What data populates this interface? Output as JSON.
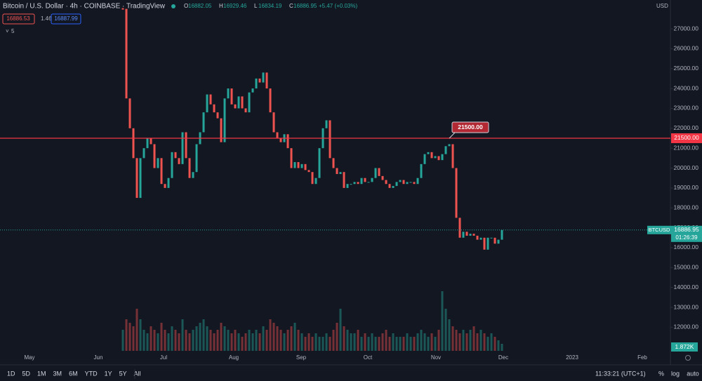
{
  "header": {
    "title": "Bitcoin / U.S. Dollar · 4h · COINBASE · TradingView",
    "ohlc": [
      {
        "label": "O",
        "value": "16882.05"
      },
      {
        "label": "H",
        "value": "16929.46"
      },
      {
        "label": "L",
        "value": "16834.19"
      },
      {
        "label": "C",
        "value": "16886.95"
      }
    ],
    "change": "+5.47 (+0.03%)",
    "bid": "16886.53",
    "spread": "1.46",
    "ask": "16887.99",
    "indicators": "5",
    "currency": "USD"
  },
  "chart_data": {
    "type": "candlestick",
    "closes": [
      28000,
      23500,
      22000,
      20500,
      18500,
      20500,
      21000,
      21500,
      21200,
      20000,
      20500,
      19200,
      19000,
      19500,
      20800,
      20500,
      20200,
      21800,
      20500,
      19500,
      19800,
      21200,
      21800,
      22800,
      23700,
      23200,
      22800,
      22500,
      21300,
      23500,
      24000,
      23200,
      23000,
      23600,
      23000,
      22800,
      23800,
      24000,
      24500,
      24300,
      24800,
      24000,
      22800,
      21800,
      21500,
      21300,
      21700,
      21000,
      20000,
      20300,
      20000,
      20200,
      19900,
      19800,
      19200,
      19500,
      21000,
      22000,
      22400,
      20500,
      20000,
      19700,
      19800,
      19000,
      19200,
      19200,
      19300,
      19200,
      19500,
      19300,
      19300,
      19500,
      20000,
      19600,
      19400,
      19200,
      19000,
      19100,
      19300,
      19400,
      19200,
      19300,
      19300,
      19200,
      19500,
      20200,
      20700,
      20800,
      20500,
      20600,
      20400,
      20700,
      21100,
      21200,
      20000,
      17500,
      16500,
      16800,
      16600,
      16700,
      16600,
      16400,
      16500,
      15900,
      16500,
      16500,
      16200,
      16400,
      16886.95
    ],
    "volume": [
      6,
      9,
      8,
      7,
      12,
      9,
      6,
      5,
      7,
      6,
      5,
      8,
      6,
      5,
      7,
      6,
      5,
      9,
      6,
      5,
      6,
      7,
      8,
      9,
      7,
      6,
      5,
      6,
      8,
      7,
      6,
      5,
      6,
      5,
      4,
      5,
      6,
      5,
      6,
      5,
      7,
      6,
      9,
      8,
      7,
      6,
      5,
      6,
      7,
      8,
      6,
      5,
      4,
      5,
      4,
      5,
      4,
      4,
      5,
      4,
      6,
      8,
      12,
      7,
      6,
      5,
      5,
      6,
      4,
      5,
      4,
      5,
      4,
      4,
      5,
      6,
      4,
      5,
      4,
      4,
      4,
      5,
      4,
      4,
      5,
      6,
      5,
      4,
      5,
      4,
      6,
      17,
      12,
      9,
      7,
      6,
      5,
      6,
      5,
      6,
      7,
      5,
      6,
      5,
      4,
      5,
      4,
      3,
      2
    ],
    "up_color": "#26a69a",
    "down_color": "#ef5350",
    "ylim": [
      10815,
      28446
    ],
    "yticks": [
      {
        "value": 12000,
        "label": "12000.00"
      },
      {
        "value": 13000,
        "label": "13000.00"
      },
      {
        "value": 14000,
        "label": "14000.00"
      },
      {
        "value": 15000,
        "label": "15000.00"
      },
      {
        "value": 16000,
        "label": "16000.00"
      },
      {
        "value": 17000,
        "label": "17000.00"
      },
      {
        "value": 18000,
        "label": "18000.00"
      },
      {
        "value": 19000,
        "label": "19000.00"
      },
      {
        "value": 20000,
        "label": "20000.00"
      },
      {
        "value": 21000,
        "label": "21000.00"
      },
      {
        "value": 22000,
        "label": "22000.00"
      },
      {
        "value": 23000,
        "label": "23000.00"
      },
      {
        "value": 24000,
        "label": "24000.00"
      },
      {
        "value": 25000,
        "label": "25000.00"
      },
      {
        "value": 26000,
        "label": "26000.00"
      },
      {
        "value": 27000,
        "label": "27000.00"
      }
    ],
    "categories": [
      "May",
      "Jun",
      "Jul",
      "Aug",
      "Sep",
      "Oct",
      "Nov",
      "Dec",
      "2023",
      "Feb"
    ],
    "hline": {
      "value": 21500,
      "label": "21500.00"
    },
    "last_price": {
      "value": 16886.95,
      "label": "16886.95"
    },
    "symbol": "BTCUSD",
    "countdown": "01:26:39",
    "volume_label": "1.872K"
  },
  "toolbar": {
    "ranges": [
      "1D",
      "5D",
      "1M",
      "3M",
      "6M",
      "YTD",
      "1Y",
      "5Y",
      "All"
    ],
    "clock": "11:33:21 (UTC+1)",
    "percent": "%",
    "log": "log",
    "auto": "auto"
  }
}
